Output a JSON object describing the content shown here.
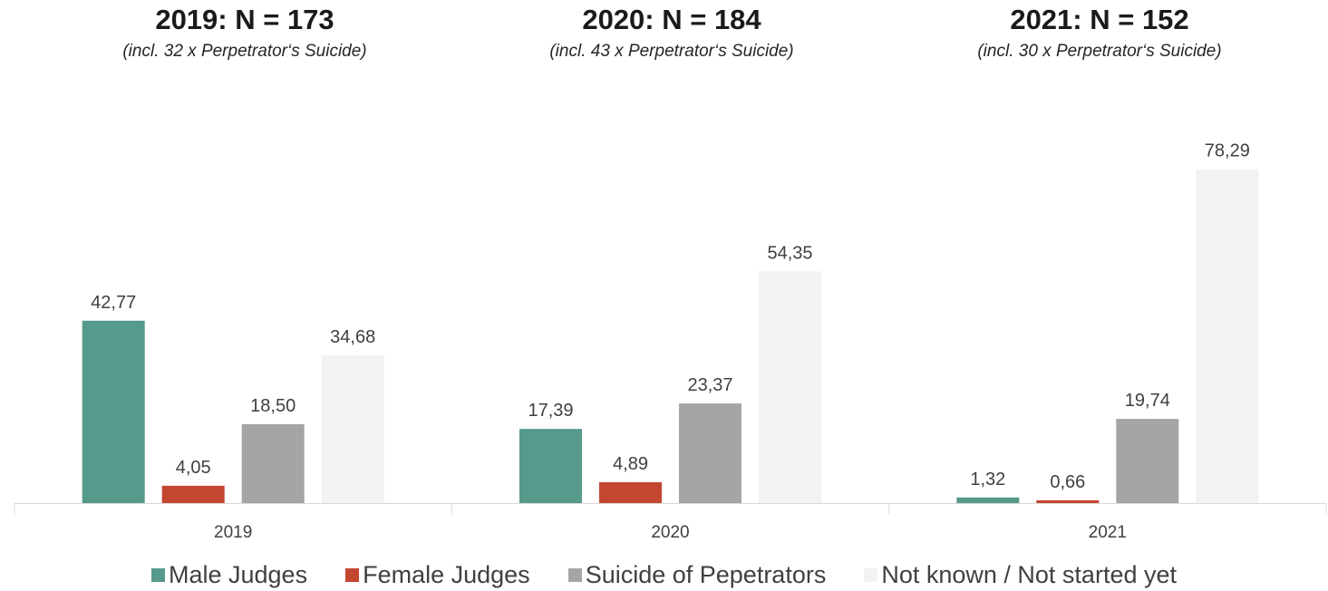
{
  "headers": [
    {
      "title": "2019: N = 173",
      "subtitle": "(incl. 32 x Perpetrator‘s Suicide)"
    },
    {
      "title": "2020: N = 184",
      "subtitle": "(incl. 43 x Perpetrator‘s Suicide)"
    },
    {
      "title": "2021: N = 152",
      "subtitle": "(incl. 30 x Perpetrator‘s Suicide)"
    }
  ],
  "chart_data": {
    "type": "bar",
    "categories": [
      "2019",
      "2020",
      "2021"
    ],
    "series": [
      {
        "name": "Male Judges",
        "color": "#559a8b",
        "values": [
          42.77,
          17.39,
          1.32
        ],
        "labels": [
          "42,77",
          "17,39",
          "1,32"
        ]
      },
      {
        "name": "Female Judges",
        "color": "#c34631",
        "values": [
          4.05,
          4.89,
          0.66
        ],
        "labels": [
          "4,05",
          "4,89",
          "0,66"
        ]
      },
      {
        "name": "Suicide of Pepetrators",
        "color": "#a5a5a5",
        "values": [
          18.5,
          23.37,
          19.74
        ],
        "labels": [
          "18,50",
          "23,37",
          "19,74"
        ]
      },
      {
        "name": "Not known / Not started yet",
        "color": "#f2f2f2",
        "values": [
          34.68,
          54.35,
          78.29
        ],
        "labels": [
          "34,68",
          "54,35",
          "78,29"
        ]
      }
    ],
    "ylim": [
      0,
      80
    ],
    "grid": false,
    "legend_position": "bottom"
  }
}
